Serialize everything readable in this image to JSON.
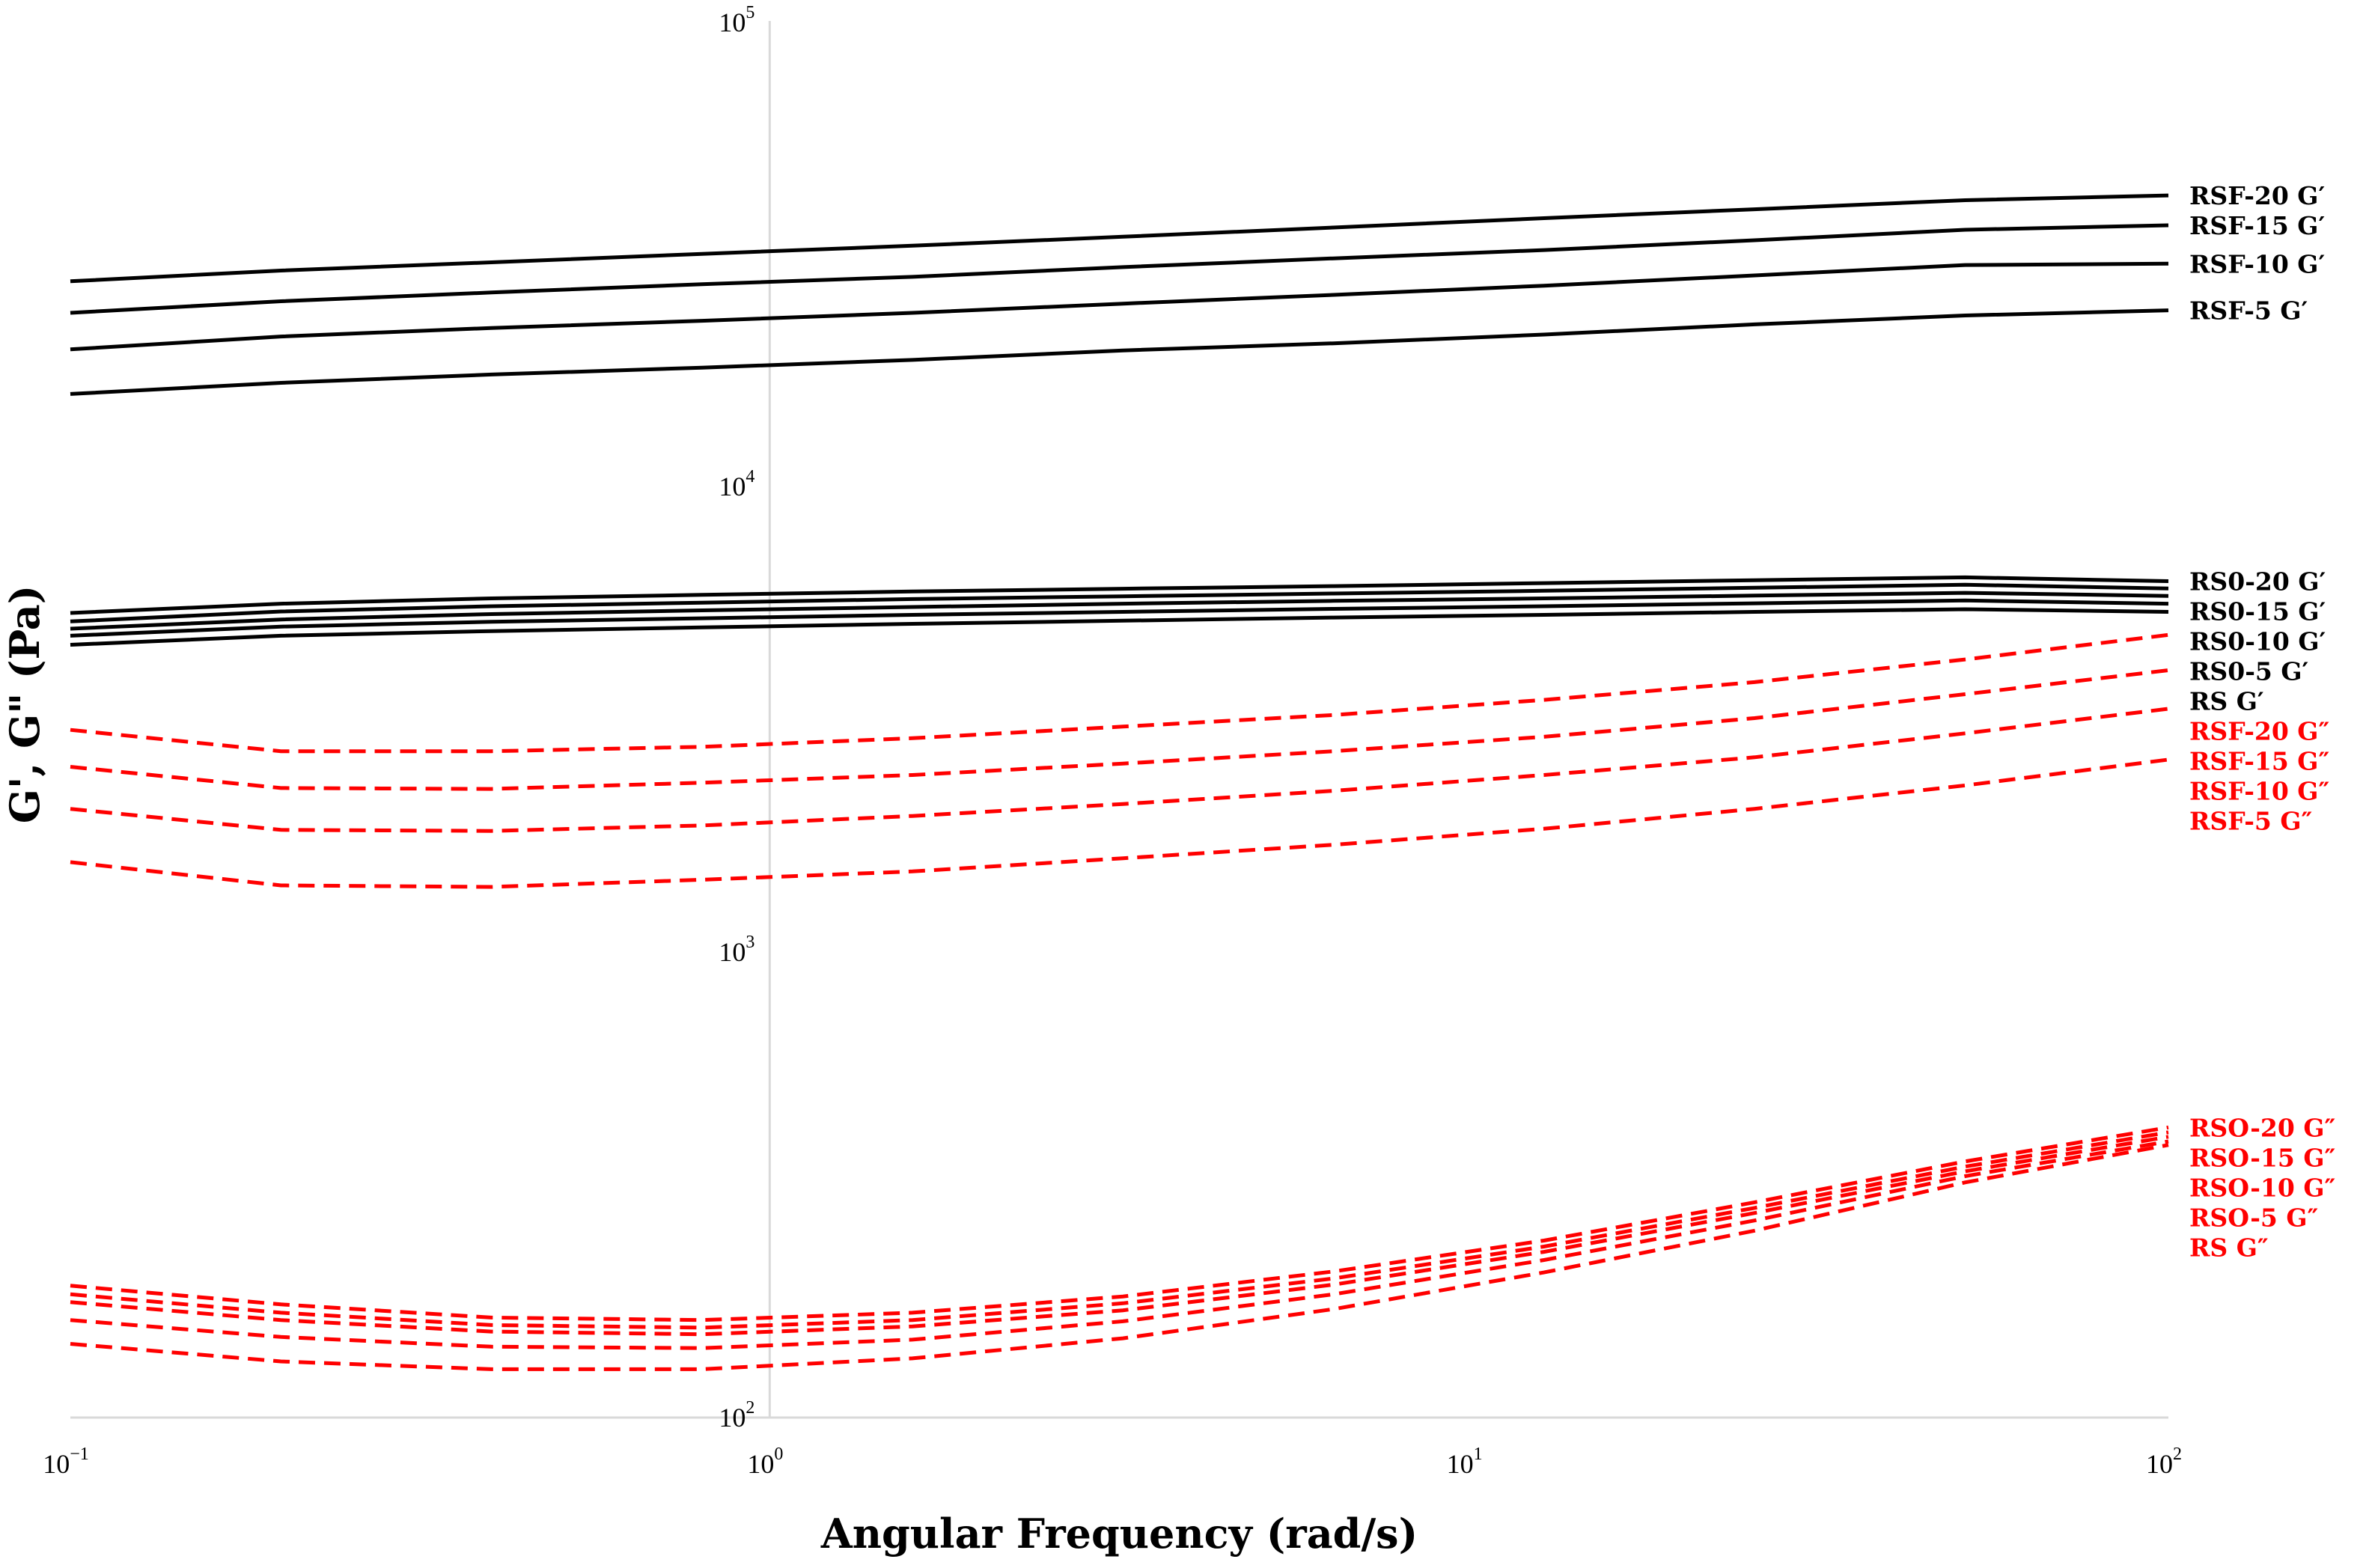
{
  "chart_data": {
    "type": "line",
    "xlabel": "Angular Frequency (rad/s)",
    "ylabel": "G', G\" (Pa)",
    "xscale": "log",
    "yscale": "log",
    "xlim": [
      0.1,
      100
    ],
    "ylim": [
      100,
      100000
    ],
    "x_ticks": [
      {
        "value": 0.1,
        "base": "10",
        "exp": "−1"
      },
      {
        "value": 1,
        "base": "10",
        "exp": "0"
      },
      {
        "value": 10,
        "base": "10",
        "exp": "1"
      },
      {
        "value": 100,
        "base": "10",
        "exp": "2"
      }
    ],
    "y_ticks": [
      {
        "value": 100,
        "base": "10",
        "exp": "2"
      },
      {
        "value": 1000,
        "base": "10",
        "exp": "3"
      },
      {
        "value": 10000,
        "base": "10",
        "exp": "4"
      },
      {
        "value": 100000,
        "base": "10",
        "exp": "5"
      }
    ],
    "grid": {
      "horizontal": false,
      "vertical_at_x": 1
    },
    "legend": "inline labels at right end of lines",
    "colors": {
      "storage": "#000000",
      "loss": "#ff0000",
      "axis": "#d9d9d9"
    },
    "x": [
      0.1,
      0.2,
      0.4,
      0.8,
      1.6,
      3.2,
      6.4,
      12.8,
      25.6,
      51.2,
      100
    ],
    "series": [
      {
        "name": "RSF-20 G′",
        "style": "solid",
        "color": "#000000",
        "values": [
          27600,
          29100,
          30300,
          31600,
          32900,
          34400,
          36000,
          37700,
          39400,
          41200,
          42200
        ]
      },
      {
        "name": "RSF-15 G′",
        "style": "solid",
        "color": "#000000",
        "values": [
          23600,
          25000,
          26100,
          27200,
          28200,
          29600,
          30900,
          32200,
          33800,
          35600,
          36400
        ]
      },
      {
        "name": "RSF-10 G′",
        "style": "solid",
        "color": "#000000",
        "values": [
          19700,
          21000,
          21900,
          22700,
          23600,
          24700,
          25800,
          27000,
          28400,
          29900,
          30100
        ]
      },
      {
        "name": "RSF-5 G′",
        "style": "solid",
        "color": "#000000",
        "values": [
          15800,
          16700,
          17400,
          18000,
          18700,
          19600,
          20300,
          21200,
          22300,
          23300,
          23900
        ]
      },
      {
        "name": "RS0-20 G′",
        "style": "solid",
        "color": "#000000",
        "values": [
          5350,
          5600,
          5750,
          5850,
          5950,
          6030,
          6110,
          6200,
          6290,
          6380,
          6260
        ]
      },
      {
        "name": "RS0-15 G′",
        "style": "solid",
        "color": "#000000",
        "values": [
          5130,
          5390,
          5530,
          5630,
          5730,
          5810,
          5890,
          5970,
          6060,
          6150,
          6040
        ]
      },
      {
        "name": "RS0-10 G′",
        "style": "solid",
        "color": "#000000",
        "values": [
          4950,
          5180,
          5320,
          5420,
          5510,
          5600,
          5680,
          5750,
          5830,
          5910,
          5820
        ]
      },
      {
        "name": "RS0-5 G′",
        "style": "solid",
        "color": "#000000",
        "values": [
          4780,
          5000,
          5120,
          5210,
          5300,
          5380,
          5460,
          5530,
          5610,
          5690,
          5600
        ]
      },
      {
        "name": "RS G′",
        "style": "solid",
        "color": "#000000",
        "values": [
          4570,
          4780,
          4890,
          4980,
          5070,
          5150,
          5230,
          5300,
          5380,
          5450,
          5380
        ]
      },
      {
        "name": "RSF-20 G″",
        "style": "dashed",
        "color": "#ff0000",
        "values": [
          3000,
          2700,
          2700,
          2760,
          2880,
          3050,
          3230,
          3480,
          3800,
          4250,
          4800
        ]
      },
      {
        "name": "RSF-15 G″",
        "style": "dashed",
        "color": "#ff0000",
        "values": [
          2500,
          2250,
          2240,
          2310,
          2400,
          2540,
          2700,
          2900,
          3180,
          3580,
          4030
        ]
      },
      {
        "name": "RSF-10 G″",
        "style": "dashed",
        "color": "#ff0000",
        "values": [
          2030,
          1830,
          1820,
          1870,
          1960,
          2080,
          2220,
          2400,
          2620,
          2950,
          3330
        ]
      },
      {
        "name": "RSF-5 G″",
        "style": "dashed",
        "color": "#ff0000",
        "values": [
          1560,
          1390,
          1380,
          1430,
          1490,
          1590,
          1700,
          1840,
          2030,
          2280,
          2590
        ]
      },
      {
        "name": "RSO-20 G″",
        "style": "dashed",
        "color": "#ff0000",
        "values": [
          192,
          175,
          164,
          162,
          168,
          182,
          206,
          240,
          290,
          355,
          420
        ]
      },
      {
        "name": "RSO-15 G″",
        "style": "dashed",
        "color": "#ff0000",
        "values": [
          184,
          168,
          158,
          156,
          162,
          176,
          199,
          233,
          282,
          346,
          410
        ]
      },
      {
        "name": "RSO-10 G″",
        "style": "dashed",
        "color": "#ff0000",
        "values": [
          177,
          162,
          153,
          151,
          157,
          170,
          193,
          227,
          275,
          338,
          401
        ]
      },
      {
        "name": "RSO-5 G″",
        "style": "dashed",
        "color": "#ff0000",
        "values": [
          162,
          149,
          142,
          141,
          147,
          161,
          184,
          218,
          265,
          330,
          392
        ]
      },
      {
        "name": "RS G″",
        "style": "dashed",
        "color": "#ff0000",
        "values": [
          144,
          132,
          127,
          127,
          134,
          148,
          171,
          205,
          252,
          320,
          385
        ]
      }
    ]
  }
}
